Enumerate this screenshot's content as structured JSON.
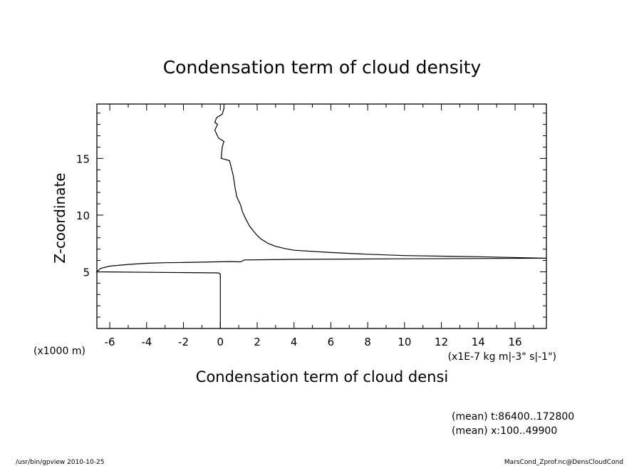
{
  "chart_data": {
    "type": "line",
    "title": "Condensation term of cloud density",
    "xlabel": "Condensation term of cloud densi",
    "ylabel": "Z-coordinate",
    "x_units": "(x1E-7 kg m|-3\" s|-1\")",
    "y_units": "(x1000 m)",
    "xlim": [
      -6.7,
      17.7
    ],
    "ylim": [
      0,
      19.8
    ],
    "x_ticks": [
      -6,
      -4,
      -2,
      0,
      2,
      4,
      6,
      8,
      10,
      12,
      14,
      16
    ],
    "x_tick_labels": [
      "-6",
      "-4",
      "-2",
      "0",
      "2",
      "4",
      "6",
      "8",
      "10",
      "12",
      "14",
      "16"
    ],
    "y_ticks": [
      5,
      10,
      15
    ],
    "y_tick_labels": [
      "5",
      "10",
      "15"
    ],
    "x_minor_step": 1,
    "y_minor_step": 1,
    "grid": false,
    "series": [
      {
        "name": "",
        "x": [
          0,
          0,
          0,
          0,
          -0.1,
          -6.7,
          -6.5,
          -6,
          -5,
          -4,
          -3,
          -2,
          -1,
          0.5,
          1.1,
          1.3,
          4,
          10,
          17.7,
          14,
          10,
          8,
          6,
          4,
          3.5,
          3,
          2.6,
          2.2,
          2,
          1.8,
          1.6,
          1.4,
          1.2,
          1.1,
          0.9,
          0.8,
          0.7,
          0.5,
          0.2,
          0.05,
          0.1,
          0.2,
          -0.1,
          -0.3,
          -0.15,
          -0.3,
          -0.2,
          0.1,
          0.2,
          0.2
        ],
        "y": [
          0,
          2,
          4,
          4.8,
          4.9,
          5.0,
          5.3,
          5.5,
          5.65,
          5.75,
          5.8,
          5.82,
          5.85,
          5.9,
          5.88,
          6.05,
          6.1,
          6.15,
          6.2,
          6.33,
          6.43,
          6.55,
          6.7,
          6.9,
          7.05,
          7.25,
          7.5,
          7.9,
          8.2,
          8.6,
          9.0,
          9.6,
          10.3,
          10.9,
          11.6,
          12.4,
          13.5,
          14.8,
          14.95,
          15.0,
          16.0,
          16.5,
          16.8,
          17.5,
          18.0,
          18.2,
          18.6,
          18.9,
          19.4,
          19.8
        ]
      }
    ]
  },
  "annotations": {
    "mean_t": "(mean) t:86400..172800",
    "mean_x": "(mean) x:100..49900"
  },
  "footer": {
    "left": "/usr/bin/gpview   2010-10-25",
    "right": "MarsCond_Zprof.nc@DensCloudCond"
  }
}
